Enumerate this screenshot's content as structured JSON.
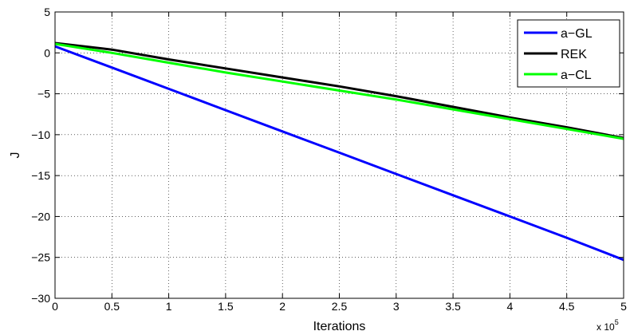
{
  "chart_data": {
    "type": "line",
    "title": "",
    "xlabel": "Iterations",
    "ylabel": "J",
    "x_multiplier_label": "x 10",
    "x_multiplier_exponent": "5",
    "xlim": [
      0,
      5
    ],
    "ylim": [
      -30,
      5
    ],
    "x_ticks": [
      0,
      0.5,
      1,
      1.5,
      2,
      2.5,
      3,
      3.5,
      4,
      4.5,
      5
    ],
    "x_tick_labels": [
      "0",
      "0.5",
      "1",
      "1.5",
      "2",
      "2.5",
      "3",
      "3.5",
      "4",
      "4.5",
      "5"
    ],
    "y_ticks": [
      -30,
      -25,
      -20,
      -15,
      -10,
      -5,
      0,
      5
    ],
    "y_tick_labels": [
      "−30",
      "−25",
      "−20",
      "−15",
      "−10",
      "−5",
      "0",
      "5"
    ],
    "grid": true,
    "legend_position": "top-right",
    "series": [
      {
        "name": "a−GL",
        "color": "#0000ff",
        "x": [
          0,
          0.5,
          1,
          1.5,
          2,
          2.5,
          3,
          3.5,
          4,
          4.5,
          5
        ],
        "y": [
          0.8,
          -1.8,
          -4.4,
          -7.0,
          -9.6,
          -12.2,
          -14.8,
          -17.4,
          -20.0,
          -22.6,
          -25.3
        ]
      },
      {
        "name": "REK",
        "color": "#000000",
        "x": [
          0,
          0.5,
          1,
          1.5,
          2,
          2.5,
          3,
          3.5,
          4,
          4.5,
          5
        ],
        "y": [
          1.2,
          0.4,
          -0.8,
          -1.9,
          -3.0,
          -4.1,
          -5.3,
          -6.6,
          -7.9,
          -9.1,
          -10.4
        ]
      },
      {
        "name": "a−CL",
        "color": "#00ff00",
        "x": [
          0,
          0.5,
          1,
          1.5,
          2,
          2.5,
          3,
          3.5,
          4,
          4.5,
          5
        ],
        "y": [
          1.1,
          0.0,
          -1.2,
          -2.4,
          -3.5,
          -4.6,
          -5.7,
          -6.9,
          -8.1,
          -9.3,
          -10.5
        ]
      }
    ]
  }
}
